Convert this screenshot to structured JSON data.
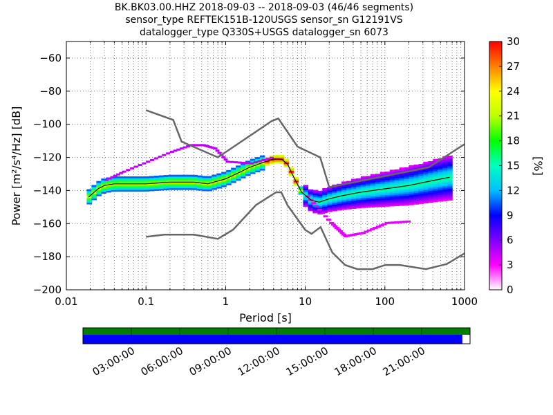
{
  "chart_data": {
    "type": "heatmap",
    "title": [
      "BK.BK03.00.HHZ   2018-09-03 -- 2018-09-03  (46/46 segments)",
      "sensor_type REFTEK151B-120USGS sensor_sn G12191VS",
      "datalogger_type Q330S+USGS datalogger_sn 6073"
    ],
    "xlabel": "Period [s]",
    "ylabel": "Power [m²/s⁴/Hz] [dB]",
    "x_scale": "log",
    "xlim": [
      0.01,
      1000
    ],
    "ylim": [
      -200,
      -50
    ],
    "x_ticks": [
      0.01,
      0.1,
      1,
      10,
      100,
      1000
    ],
    "x_tick_labels": [
      "0.01",
      "0.1",
      "1",
      "10",
      "100",
      "1000"
    ],
    "y_ticks": [
      -200,
      -180,
      -160,
      -140,
      -120,
      -100,
      -80,
      -60
    ],
    "y_tick_labels": [
      "−200",
      "−180",
      "−160",
      "−140",
      "−120",
      "−100",
      "−80",
      "−60"
    ],
    "grid": true,
    "colorbar": {
      "label": "[%]",
      "range": [
        0,
        30
      ],
      "ticks": [
        0,
        3,
        6,
        9,
        12,
        15,
        18,
        21,
        24,
        27,
        30
      ]
    },
    "noise_model_high": [
      [
        0.1,
        -91.5
      ],
      [
        0.22,
        -97.4
      ],
      [
        0.28,
        -110.5
      ],
      [
        0.8,
        -120
      ],
      [
        3.8,
        -98
      ],
      [
        4.6,
        -96.5
      ],
      [
        8,
        -113.5
      ],
      [
        15.4,
        -120
      ],
      [
        20,
        -138
      ],
      [
        354.8,
        -126
      ],
      [
        1000,
        -112
      ]
    ],
    "noise_model_low": [
      [
        0.1,
        -168
      ],
      [
        0.17,
        -166.7
      ],
      [
        0.4,
        -166.7
      ],
      [
        0.8,
        -169.2
      ],
      [
        1.24,
        -163.7
      ],
      [
        2.4,
        -148.8
      ],
      [
        4.3,
        -141.1
      ],
      [
        5,
        -141.1
      ],
      [
        6,
        -149
      ],
      [
        10,
        -163.8
      ],
      [
        12,
        -166.2
      ],
      [
        15.6,
        -162.1
      ],
      [
        21.9,
        -177.5
      ],
      [
        31.6,
        -185
      ],
      [
        45,
        -187.5
      ],
      [
        70,
        -187.5
      ],
      [
        101,
        -185
      ],
      [
        154,
        -185
      ],
      [
        328,
        -187.5
      ],
      [
        600,
        -184.4
      ],
      [
        1000,
        -178
      ]
    ],
    "median": [
      [
        0.019,
        -144
      ],
      [
        0.025,
        -139
      ],
      [
        0.03,
        -137
      ],
      [
        0.04,
        -136
      ],
      [
        0.06,
        -136
      ],
      [
        0.1,
        -136
      ],
      [
        0.2,
        -135
      ],
      [
        0.4,
        -135
      ],
      [
        0.6,
        -136
      ],
      [
        1,
        -133
      ],
      [
        1.5,
        -129
      ],
      [
        2,
        -126
      ],
      [
        3,
        -123
      ],
      [
        4,
        -121
      ],
      [
        5,
        -121
      ],
      [
        6,
        -124
      ],
      [
        7,
        -131
      ],
      [
        9,
        -141
      ],
      [
        12,
        -146
      ],
      [
        15,
        -147
      ],
      [
        20,
        -145
      ],
      [
        30,
        -143
      ],
      [
        50,
        -141
      ],
      [
        100,
        -139
      ],
      [
        200,
        -137
      ],
      [
        400,
        -134
      ],
      [
        650,
        -132
      ]
    ],
    "mode_upper_spread": [
      [
        0.03,
        -134
      ],
      [
        0.05,
        -129
      ],
      [
        0.1,
        -123
      ],
      [
        0.2,
        -117
      ],
      [
        0.35,
        -113
      ],
      [
        0.5,
        -113
      ],
      [
        0.7,
        -115
      ],
      [
        1,
        -123
      ],
      [
        2,
        -124
      ],
      [
        4,
        -120
      ]
    ],
    "mode_lower_spread": [
      [
        10,
        -144
      ],
      [
        20,
        -160
      ],
      [
        30,
        -168
      ],
      [
        50,
        -166
      ],
      [
        100,
        -160
      ],
      [
        200,
        -159
      ]
    ],
    "timeline": {
      "tick_labels": [
        "03:00:00",
        "06:00:00",
        "09:00:00",
        "12:00:00",
        "15:00:00",
        "18:00:00",
        "21:00:00"
      ],
      "data_fraction": 0.98,
      "data_color": "#0000ff",
      "coverage_color": "#007f00"
    }
  }
}
